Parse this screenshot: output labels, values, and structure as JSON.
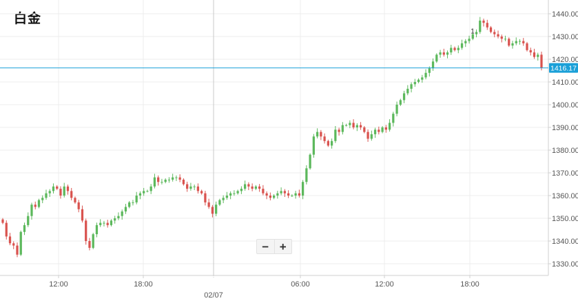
{
  "title": "白金",
  "zoom": {
    "minus_label": "−",
    "plus_label": "+"
  },
  "colors": {
    "up": "#5cb85c",
    "down": "#d9534f",
    "price_line": "#1aa0d8",
    "grid": "#ececec",
    "axis": "#cfcfcf"
  },
  "chart_data": {
    "type": "candlestick",
    "title": "白金",
    "ylim": [
      1325,
      1442
    ],
    "yticks": [
      1330,
      1340,
      1350,
      1360,
      1370,
      1380,
      1390,
      1400,
      1410,
      1420,
      1430,
      1440
    ],
    "ytick_labels": [
      "1330.00",
      "1340.00",
      "1350.00",
      "1360.00",
      "1370.00",
      "1380.00",
      "1390.00",
      "1400.00",
      "1410.00",
      "1420.00",
      "1430.00",
      "1440.00"
    ],
    "xtick_labels": [
      "12:00",
      "18:00",
      "02/07",
      "06:00",
      "12:00",
      "18:00"
    ],
    "day_separator_label": "02/07",
    "current_price": 1416.17,
    "current_price_label": "1416.17",
    "annotation": "1",
    "closes": [
      1348,
      1342,
      1339,
      1338,
      1334,
      1344,
      1347,
      1351,
      1356,
      1355,
      1358,
      1359,
      1361,
      1362,
      1364,
      1363,
      1360,
      1364,
      1362,
      1359,
      1357,
      1354,
      1349,
      1340,
      1337,
      1343,
      1347,
      1348,
      1348,
      1347,
      1349,
      1350,
      1351,
      1353,
      1355,
      1357,
      1357,
      1360,
      1361,
      1362,
      1362,
      1364,
      1368,
      1366,
      1366,
      1367,
      1367,
      1368,
      1368,
      1367,
      1365,
      1363,
      1364,
      1364,
      1362,
      1361,
      1357,
      1355,
      1352,
      1356,
      1358,
      1359,
      1360,
      1361,
      1361,
      1362,
      1363,
      1365,
      1364,
      1363,
      1364,
      1363,
      1361,
      1360,
      1359,
      1360,
      1361,
      1362,
      1361,
      1360,
      1360,
      1361,
      1360,
      1366,
      1372,
      1378,
      1386,
      1388,
      1386,
      1384,
      1382,
      1384,
      1389,
      1388,
      1391,
      1391,
      1392,
      1390,
      1391,
      1390,
      1388,
      1385,
      1387,
      1389,
      1388,
      1390,
      1389,
      1392,
      1396,
      1400,
      1402,
      1405,
      1407,
      1409,
      1410,
      1411,
      1412,
      1414,
      1416,
      1419,
      1422,
      1423,
      1422,
      1423,
      1425,
      1424,
      1425,
      1427,
      1428,
      1429,
      1431,
      1432,
      1437,
      1436,
      1434,
      1432,
      1431,
      1430,
      1429,
      1429,
      1426,
      1427,
      1428,
      1428,
      1427,
      1424,
      1423,
      1421,
      1422,
      1416.17
    ],
    "series": [
      {
        "name": "白金",
        "values": "closes"
      }
    ]
  }
}
